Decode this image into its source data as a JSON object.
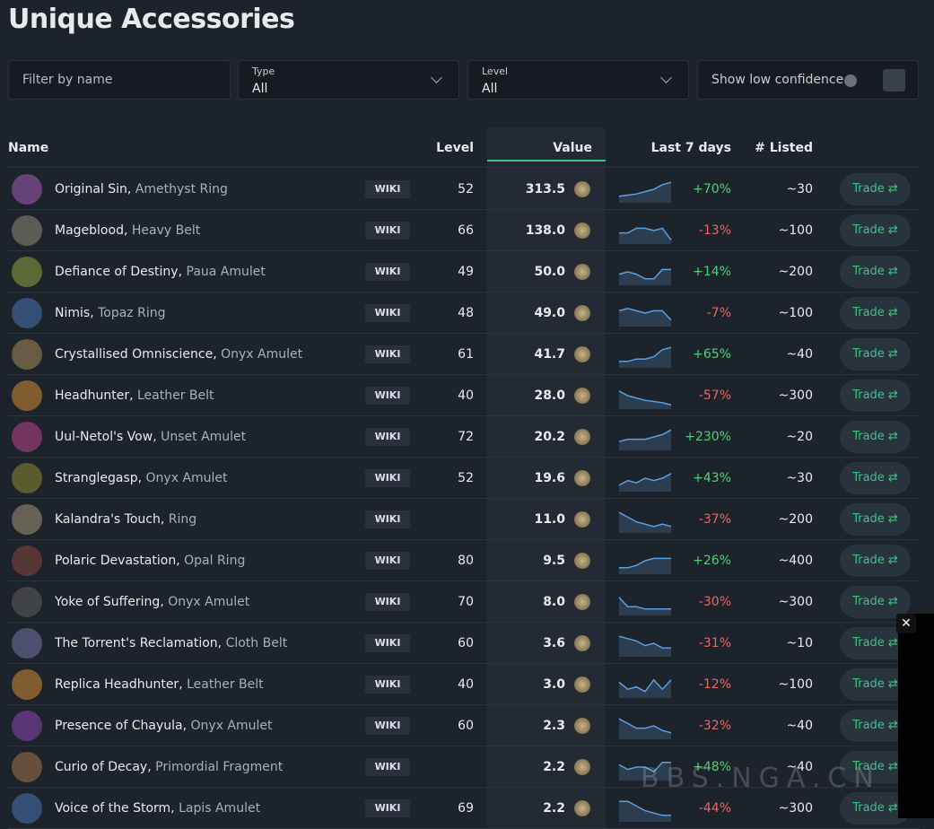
{
  "header": {
    "title": "Unique Accessories"
  },
  "filters": {
    "name_placeholder": "Filter by name",
    "type": {
      "label": "Type",
      "value": "All"
    },
    "level": {
      "label": "Level",
      "value": "All"
    },
    "low_confidence": "Show low confidence"
  },
  "table": {
    "columns": [
      "Name",
      "Level",
      "Value",
      "Last 7 days",
      "# Listed"
    ],
    "rows": [
      {
        "name": "Original Sin",
        "base": "Amethyst Ring",
        "wiki": "WIKI",
        "level": 52,
        "value": "313.5",
        "spark": [
          2,
          2.5,
          3,
          4,
          5,
          7,
          8
        ],
        "change": "+70%",
        "listed": "~30",
        "trade": "Trade"
      },
      {
        "name": "Mageblood",
        "base": "Heavy Belt",
        "wiki": "WIKI",
        "level": 66,
        "value": "138.0",
        "spark": [
          4,
          4,
          6,
          6,
          5,
          6,
          1
        ],
        "change": "-13%",
        "listed": "~100",
        "trade": "Trade"
      },
      {
        "name": "Defiance of Destiny",
        "base": "Paua Amulet",
        "wiki": "WIKI",
        "level": 49,
        "value": "50.0",
        "spark": [
          4,
          5,
          4,
          2,
          2,
          6,
          6
        ],
        "change": "+14%",
        "listed": "~200",
        "trade": "Trade"
      },
      {
        "name": "Nimis",
        "base": "Topaz Ring",
        "wiki": "WIKI",
        "level": 48,
        "value": "49.0",
        "spark": [
          6,
          7,
          6,
          5,
          6,
          6,
          2
        ],
        "change": "-7%",
        "listed": "~100",
        "trade": "Trade"
      },
      {
        "name": "Crystallised Omniscience",
        "base": "Onyx Amulet",
        "wiki": "WIKI",
        "level": 61,
        "value": "41.7",
        "spark": [
          2,
          2,
          3,
          3,
          4,
          7,
          8
        ],
        "change": "+65%",
        "listed": "~40",
        "trade": "Trade"
      },
      {
        "name": "Headhunter",
        "base": "Leather Belt",
        "wiki": "WIKI",
        "level": 40,
        "value": "28.0",
        "spark": [
          7,
          5,
          4,
          3,
          2.5,
          2,
          1
        ],
        "change": "-57%",
        "listed": "~300",
        "trade": "Trade"
      },
      {
        "name": "Uul-Netol's Vow",
        "base": "Unset Amulet",
        "wiki": "WIKI",
        "level": 72,
        "value": "20.2",
        "spark": [
          3,
          4,
          4,
          4,
          5,
          6,
          8
        ],
        "change": "+230%",
        "listed": "~20",
        "trade": "Trade"
      },
      {
        "name": "Stranglegasp",
        "base": "Onyx Amulet",
        "wiki": "WIKI",
        "level": 52,
        "value": "19.6",
        "spark": [
          2,
          4,
          3,
          5,
          4,
          5,
          7
        ],
        "change": "+43%",
        "listed": "~30",
        "trade": "Trade"
      },
      {
        "name": "Kalandra's Touch",
        "base": "Ring",
        "wiki": "WIKI",
        "level": null,
        "value": "11.0",
        "spark": [
          8,
          6,
          4,
          3,
          2,
          3,
          2
        ],
        "change": "-37%",
        "listed": "~200",
        "trade": "Trade"
      },
      {
        "name": "Polaric Devastation",
        "base": "Opal Ring",
        "wiki": "WIKI",
        "level": 80,
        "value": "9.5",
        "spark": [
          2,
          2,
          3,
          5,
          6,
          6,
          6
        ],
        "change": "+26%",
        "listed": "~400",
        "trade": "Trade"
      },
      {
        "name": "Yoke of Suffering",
        "base": "Onyx Amulet",
        "wiki": "WIKI",
        "level": 70,
        "value": "8.0",
        "spark": [
          7,
          3,
          3,
          2,
          2,
          2,
          2
        ],
        "change": "-30%",
        "listed": "~300",
        "trade": "Trade"
      },
      {
        "name": "The Torrent's Reclamation",
        "base": "Cloth Belt",
        "wiki": "WIKI",
        "level": 60,
        "value": "3.6",
        "spark": [
          8,
          7,
          6,
          4,
          5,
          3,
          3
        ],
        "change": "-31%",
        "listed": "~10",
        "trade": "Trade"
      },
      {
        "name": "Replica Headhunter",
        "base": "Leather Belt",
        "wiki": "WIKI",
        "level": 40,
        "value": "3.0",
        "spark": [
          6,
          3,
          4,
          2,
          7,
          3,
          7
        ],
        "change": "-12%",
        "listed": "~100",
        "trade": "Trade"
      },
      {
        "name": "Presence of Chayula",
        "base": "Onyx Amulet",
        "wiki": "WIKI",
        "level": 60,
        "value": "2.3",
        "spark": [
          8,
          6,
          4,
          4,
          5,
          3,
          2
        ],
        "change": "-32%",
        "listed": "~40",
        "trade": "Trade"
      },
      {
        "name": "Curio of Decay",
        "base": "Primordial Fragment",
        "wiki": "WIKI",
        "level": null,
        "value": "2.2",
        "spark": [
          6,
          4,
          5,
          5,
          3,
          7,
          7
        ],
        "change": "+48%",
        "listed": "~40",
        "trade": "Trade"
      },
      {
        "name": "Voice of the Storm",
        "base": "Lapis Amulet",
        "wiki": "WIKI",
        "level": 69,
        "value": "2.2",
        "spark": [
          8,
          8,
          6,
          4,
          3,
          2,
          2
        ],
        "change": "-44%",
        "listed": "~300",
        "trade": "Trade"
      }
    ]
  },
  "watermark": "BBS.NGA.CN"
}
